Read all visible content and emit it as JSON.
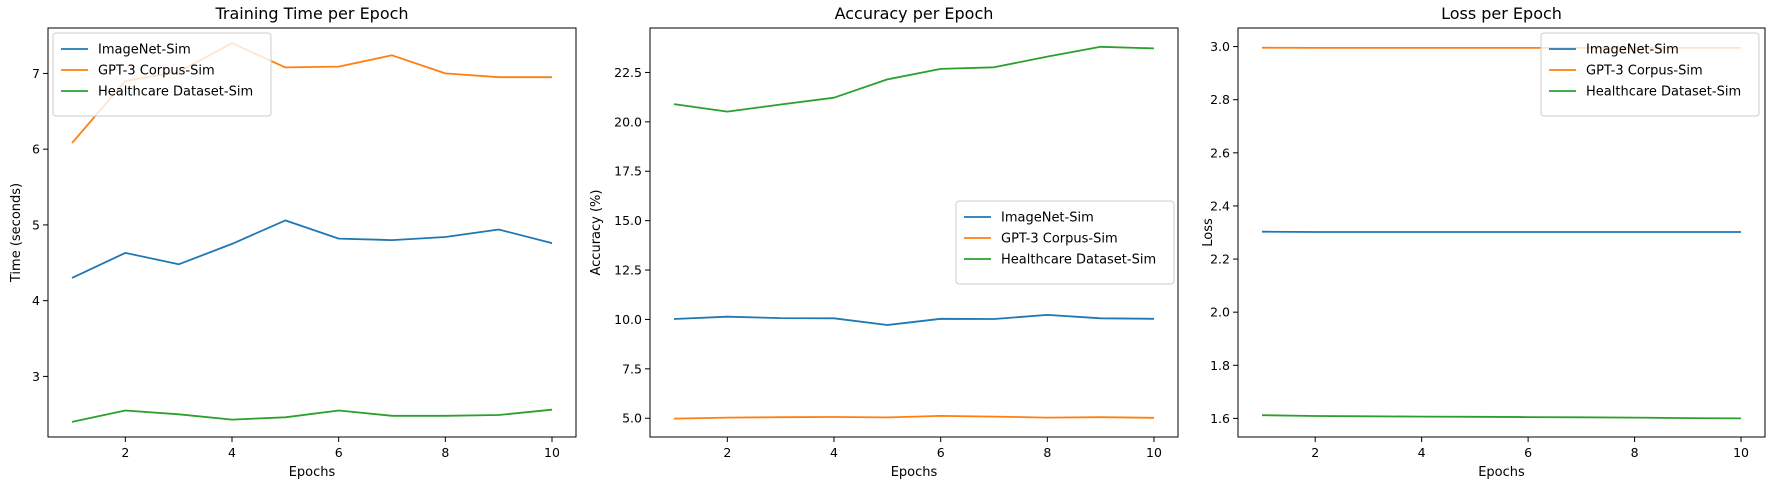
{
  "colors": {
    "ImageNet-Sim": "#1f77b4",
    "GPT-3 Corpus-Sim": "#ff7f0e",
    "Healthcare Dataset-Sim": "#2ca02c"
  },
  "chart_data": [
    {
      "type": "line",
      "title": "Training Time per Epoch",
      "xlabel": "Epochs",
      "ylabel": "Time (seconds)",
      "x": [
        1,
        2,
        3,
        4,
        5,
        6,
        7,
        8,
        9,
        10
      ],
      "xlim": [
        0.55,
        10.45
      ],
      "ylim": [
        2.2,
        7.6
      ],
      "xticks": [
        2,
        4,
        6,
        8,
        10
      ],
      "yticks": [
        3,
        4,
        5,
        6,
        7
      ],
      "legend": "top-left",
      "series": [
        {
          "name": "ImageNet-Sim",
          "values": [
            4.3,
            4.63,
            4.48,
            4.75,
            5.06,
            4.82,
            4.8,
            4.84,
            4.94,
            4.76
          ]
        },
        {
          "name": "GPT-3 Corpus-Sim",
          "values": [
            6.08,
            6.9,
            7.02,
            7.4,
            7.08,
            7.09,
            7.24,
            7.0,
            6.95,
            6.95
          ]
        },
        {
          "name": "Healthcare Dataset-Sim",
          "values": [
            2.4,
            2.55,
            2.5,
            2.43,
            2.46,
            2.55,
            2.48,
            2.48,
            2.49,
            2.56
          ]
        }
      ]
    },
    {
      "type": "line",
      "title": "Accuracy per Epoch",
      "xlabel": "Epochs",
      "ylabel": "Accuracy (%)",
      "x": [
        1,
        2,
        3,
        4,
        5,
        6,
        7,
        8,
        9,
        10
      ],
      "xlim": [
        0.55,
        10.45
      ],
      "ylim": [
        4.05,
        24.75
      ],
      "xticks": [
        2,
        4,
        6,
        8,
        10
      ],
      "yticks": [
        5.0,
        7.5,
        10.0,
        12.5,
        15.0,
        17.5,
        20.0,
        22.5
      ],
      "ytick_labels": [
        "5.0",
        "7.5",
        "10.0",
        "12.5",
        "15.0",
        "17.5",
        "20.0",
        "22.5"
      ],
      "legend": "center-right",
      "series": [
        {
          "name": "ImageNet-Sim",
          "values": [
            10.02,
            10.14,
            10.07,
            10.06,
            9.72,
            10.03,
            10.02,
            10.23,
            10.06,
            10.03
          ]
        },
        {
          "name": "GPT-3 Corpus-Sim",
          "values": [
            4.98,
            5.03,
            5.05,
            5.06,
            5.04,
            5.12,
            5.08,
            5.03,
            5.05,
            5.02
          ]
        },
        {
          "name": "Healthcare Dataset-Sim",
          "values": [
            20.9,
            20.52,
            20.88,
            21.22,
            22.15,
            22.68,
            22.76,
            23.3,
            23.8,
            23.72
          ]
        }
      ]
    },
    {
      "type": "line",
      "title": "Loss per Epoch",
      "xlabel": "Epochs",
      "ylabel": "Loss",
      "x": [
        1,
        2,
        3,
        4,
        5,
        6,
        7,
        8,
        9,
        10
      ],
      "xlim": [
        0.55,
        10.45
      ],
      "ylim": [
        1.53,
        3.07
      ],
      "xticks": [
        2,
        4,
        6,
        8,
        10
      ],
      "yticks": [
        1.6,
        1.8,
        2.0,
        2.2,
        2.4,
        2.6,
        2.8,
        3.0
      ],
      "ytick_labels": [
        "1.6",
        "1.8",
        "2.0",
        "2.2",
        "2.4",
        "2.6",
        "2.8",
        "3.0"
      ],
      "legend": "top-right",
      "series": [
        {
          "name": "ImageNet-Sim",
          "values": [
            2.303,
            2.302,
            2.302,
            2.302,
            2.302,
            2.302,
            2.302,
            2.302,
            2.302,
            2.302
          ]
        },
        {
          "name": "GPT-3 Corpus-Sim",
          "values": [
            2.996,
            2.995,
            2.995,
            2.995,
            2.995,
            2.995,
            2.995,
            2.995,
            2.995,
            2.995
          ]
        },
        {
          "name": "Healthcare Dataset-Sim",
          "values": [
            1.612,
            1.609,
            1.608,
            1.607,
            1.606,
            1.605,
            1.604,
            1.603,
            1.601,
            1.6
          ]
        }
      ]
    }
  ]
}
